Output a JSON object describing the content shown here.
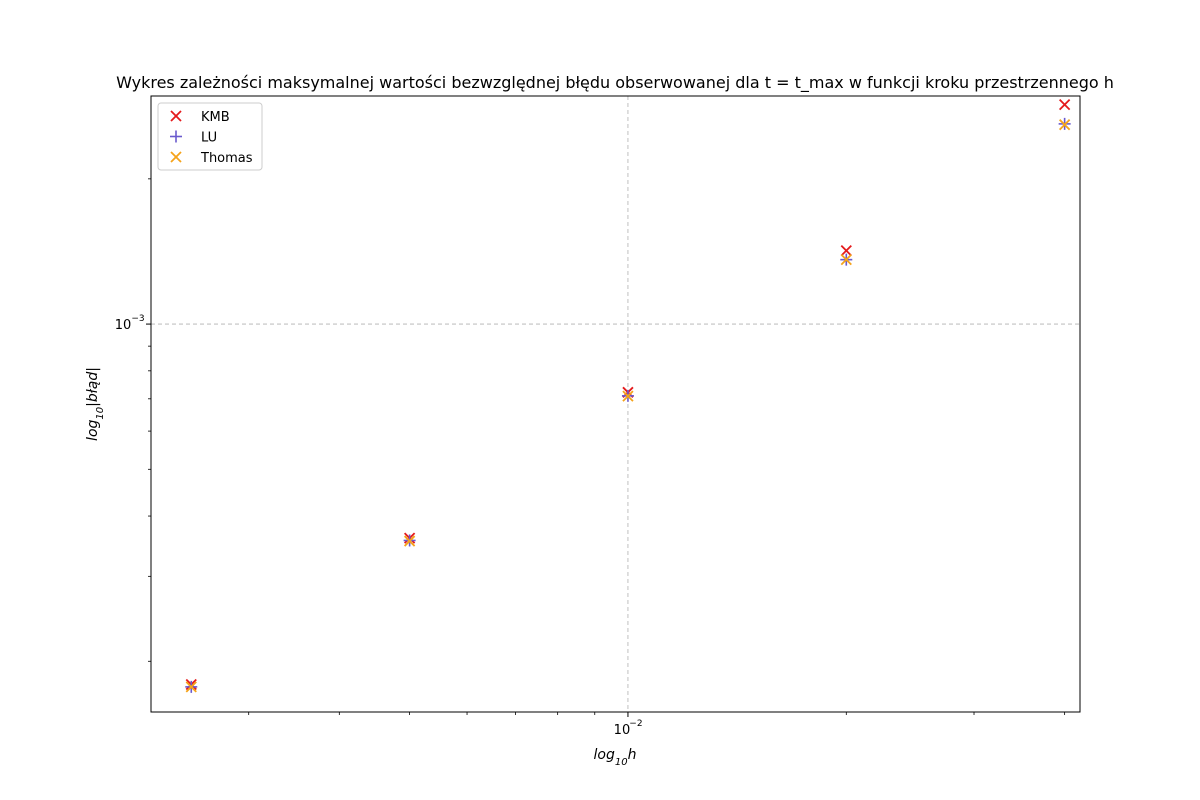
{
  "chart_data": {
    "type": "scatter",
    "title": "Wykres zależności maksymalnej wartości bezwzględnej błędu obserwowanej dla t = t_max w funkcji kroku przestrzennego h",
    "xlabel": "log10h",
    "ylabel": "log10|błąd|",
    "xscale": "log",
    "yscale": "log",
    "xlim": [
      0.0022,
      0.042
    ],
    "ylim": [
      0.000157,
      0.00297
    ],
    "grid": "major",
    "legend": "top-left",
    "x_major_ticks": [
      {
        "value": 0.01,
        "label": "10",
        "exp": "−2"
      }
    ],
    "y_major_ticks": [
      {
        "value": 0.001,
        "label": "10",
        "exp": "−3"
      }
    ],
    "x": [
      0.0025,
      0.005,
      0.01,
      0.02,
      0.04
    ],
    "series": [
      {
        "name": "KMB",
        "marker": "x",
        "color": "#e41a1c",
        "values": [
          0.000179,
          0.00036,
          0.000722,
          0.00142,
          0.00285
        ]
      },
      {
        "name": "LU",
        "marker": "+",
        "color": "#6a5acd",
        "values": [
          0.000177,
          0.000356,
          0.00071,
          0.00136,
          0.0026
        ]
      },
      {
        "name": "Thomas",
        "marker": "x",
        "color": "#f5a31a",
        "values": [
          0.000177,
          0.000355,
          0.000709,
          0.00136,
          0.00259
        ]
      }
    ]
  }
}
